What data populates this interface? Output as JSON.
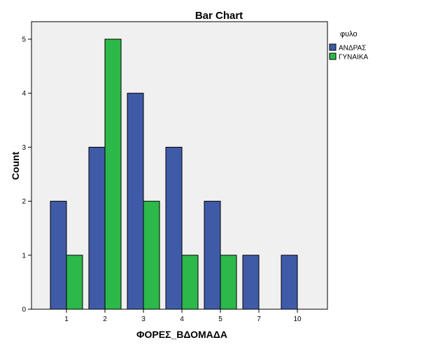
{
  "chart_data": {
    "type": "bar",
    "title": "Bar Chart",
    "xlabel": "ΦΟΡΕΣ_ΒΔΟΜΑΔΑ",
    "ylabel": "Count",
    "categories": [
      "1",
      "2",
      "3",
      "4",
      "5",
      "7",
      "10"
    ],
    "series": [
      {
        "name": "ΑΝΔΡΑΣ",
        "color": "#3f5ba8",
        "values": [
          2,
          3,
          4,
          3,
          2,
          1,
          1
        ]
      },
      {
        "name": "ΓΥΝΑΙΚΑ",
        "color": "#2db84a",
        "values": [
          1,
          5,
          2,
          1,
          1,
          null,
          null
        ]
      }
    ],
    "ylim": [
      0,
      5
    ],
    "yticks": [
      "0",
      "1",
      "2",
      "3",
      "4",
      "5"
    ],
    "grid": false,
    "plot_background": "#f0f0f0",
    "legend": {
      "title": "φυλο",
      "placement": "right-top"
    }
  }
}
